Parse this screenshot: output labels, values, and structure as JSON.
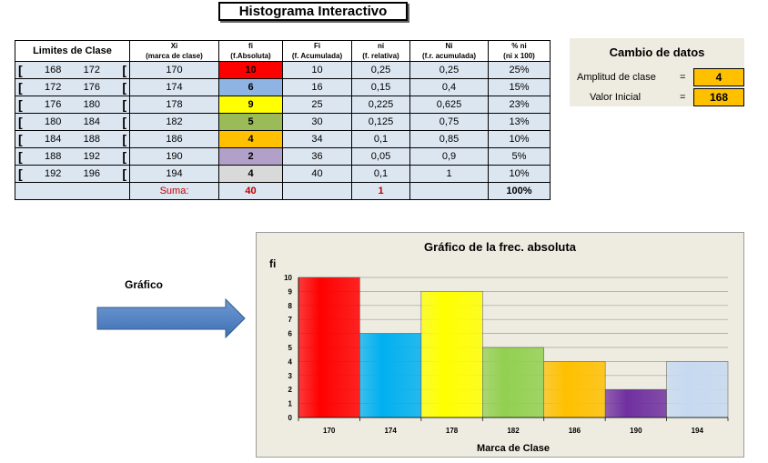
{
  "title": "Histograma Interactivo",
  "table": {
    "headers": {
      "limites": "Limites de Clase",
      "xi": "Xi",
      "xi_sub": "(marca de clase)",
      "fi": "fi",
      "fi_sub": "(f.Absoluta)",
      "Fi": "Fi",
      "Fi_sub": "(f. Acumulada)",
      "ni": "ni",
      "ni_sub": "(f. relativa)",
      "Ni": "Ni",
      "Ni_sub": "(f.r. acumulada)",
      "pct": "% ni",
      "pct_sub": "(ni x 100)"
    },
    "rows": [
      {
        "lo": "168",
        "hi": "172",
        "xi": "170",
        "fi": "10",
        "Fi": "10",
        "ni": "0,25",
        "Ni": "0,25",
        "pct": "25%",
        "color": "#ff0000"
      },
      {
        "lo": "172",
        "hi": "176",
        "xi": "174",
        "fi": "6",
        "Fi": "16",
        "ni": "0,15",
        "Ni": "0,4",
        "pct": "15%",
        "color": "#8db4e2"
      },
      {
        "lo": "176",
        "hi": "180",
        "xi": "178",
        "fi": "9",
        "Fi": "25",
        "ni": "0,225",
        "Ni": "0,625",
        "pct": "23%",
        "color": "#ffff00"
      },
      {
        "lo": "180",
        "hi": "184",
        "xi": "182",
        "fi": "5",
        "Fi": "30",
        "ni": "0,125",
        "Ni": "0,75",
        "pct": "13%",
        "color": "#9bbb59"
      },
      {
        "lo": "184",
        "hi": "188",
        "xi": "186",
        "fi": "4",
        "Fi": "34",
        "ni": "0,1",
        "Ni": "0,85",
        "pct": "10%",
        "color": "#ffc000"
      },
      {
        "lo": "188",
        "hi": "192",
        "xi": "190",
        "fi": "2",
        "Fi": "36",
        "ni": "0,05",
        "Ni": "0,9",
        "pct": "5%",
        "color": "#b1a0c7"
      },
      {
        "lo": "192",
        "hi": "196",
        "xi": "194",
        "fi": "4",
        "Fi": "40",
        "ni": "0,1",
        "Ni": "1",
        "pct": "10%",
        "color": "#d9d9d9"
      }
    ],
    "bracket": "[",
    "suma_label": "Suma:",
    "suma_fi": "40",
    "suma_ni": "1",
    "suma_pct": "100%"
  },
  "cambio": {
    "title": "Cambio de datos",
    "amplitud_label": "Amplitud de clase",
    "amplitud_eq": "=",
    "amplitud_value": "4",
    "inicial_label": "Valor Inicial",
    "inicial_eq": "=",
    "inicial_value": "168"
  },
  "grafico_label": "Gráfico",
  "chart_data": {
    "type": "bar",
    "title": "Gráfico de la frec. absoluta",
    "ylabel": "fi",
    "xlabel": "Marca de Clase",
    "categories": [
      "170",
      "174",
      "178",
      "182",
      "186",
      "190",
      "194"
    ],
    "values": [
      10,
      6,
      9,
      5,
      4,
      2,
      4
    ],
    "ylim": [
      0,
      10
    ],
    "yticks": [
      "0",
      "1",
      "2",
      "3",
      "4",
      "5",
      "6",
      "7",
      "8",
      "9",
      "10"
    ],
    "colors": [
      "#ff0000",
      "#00b0f0",
      "#ffff00",
      "#92d050",
      "#ffc000",
      "#7030a0",
      "#c6d9f1"
    ],
    "grid": true
  }
}
